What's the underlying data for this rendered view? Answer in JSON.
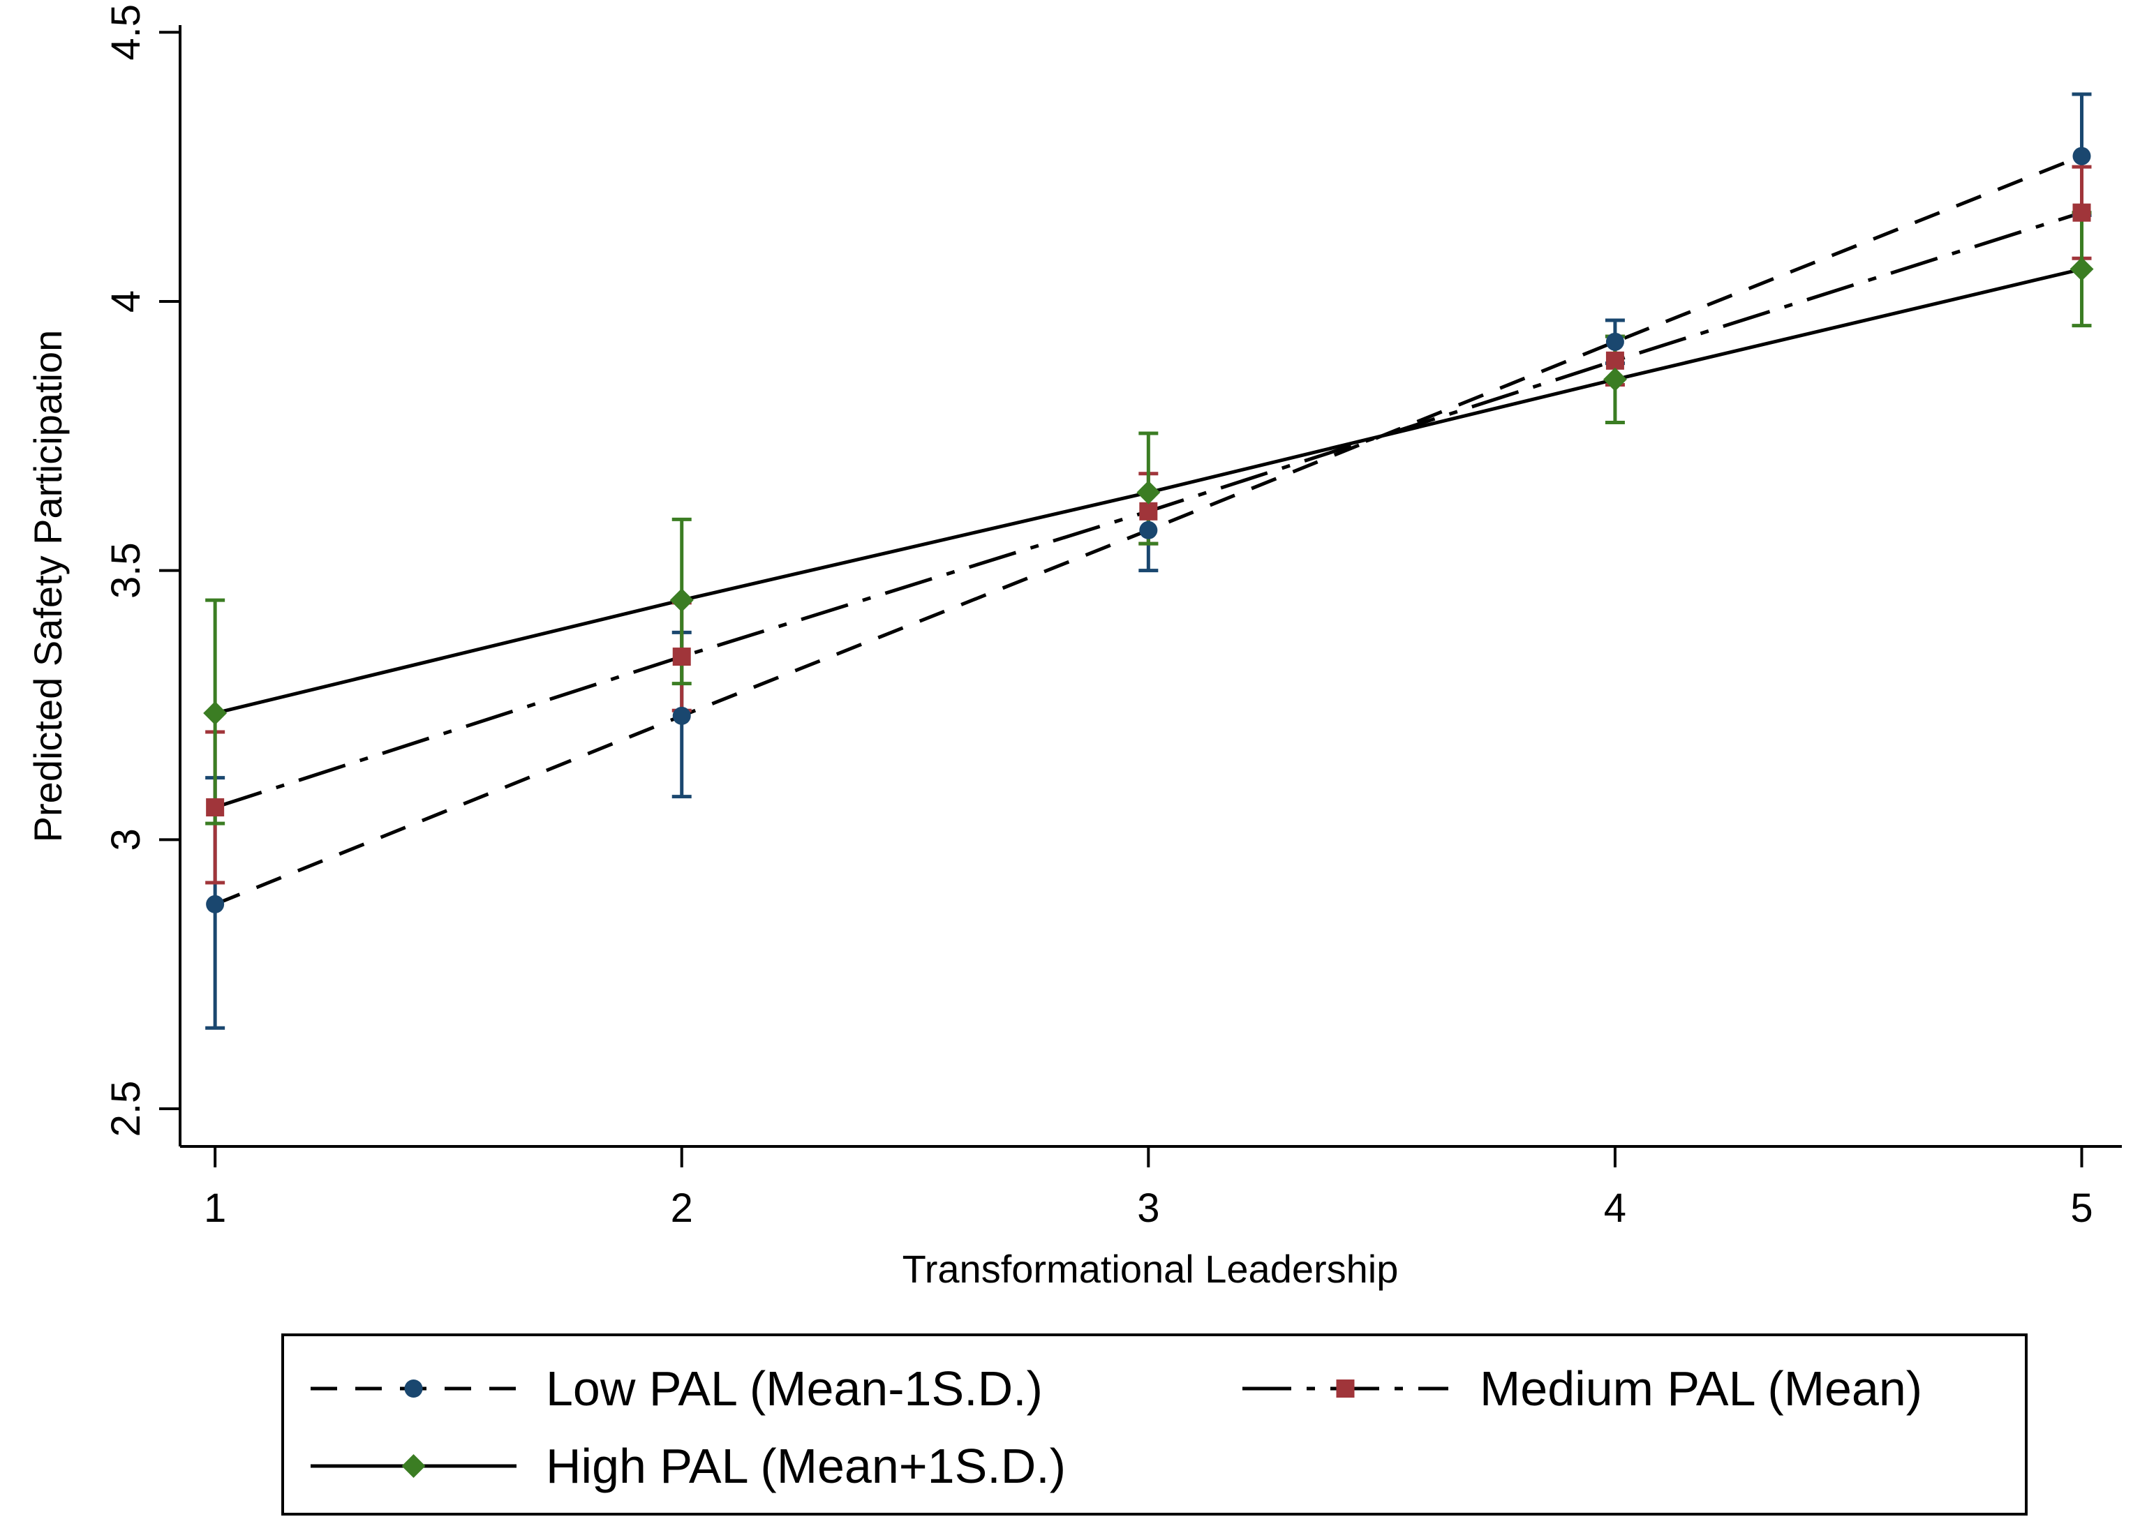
{
  "chart_data": {
    "type": "line",
    "title": "",
    "xlabel": "Transformational Leadership",
    "ylabel": "Predicted Safety Participation",
    "x": [
      1,
      2,
      3,
      4,
      5
    ],
    "xlim": [
      0.925,
      5.08
    ],
    "ylim": [
      2.43,
      4.56
    ],
    "xticks": [
      "1",
      "2",
      "3",
      "4",
      "5"
    ],
    "yticks": [
      "2.5",
      "3",
      "3.5",
      "4",
      "4.5"
    ],
    "grid": false,
    "legend_position": "bottom",
    "series": [
      {
        "name": "Low PAL (Mean-1S.D.)",
        "color": "#1a476f",
        "line_style": "dash",
        "marker": "circle",
        "values": [
          2.88,
          3.23,
          3.575,
          3.925,
          4.27
        ],
        "ci_low": [
          2.65,
          3.08,
          3.5,
          3.885,
          4.16
        ],
        "ci_high": [
          3.115,
          3.385,
          3.645,
          3.965,
          4.385
        ]
      },
      {
        "name": "Medium PAL (Mean)",
        "color": "#a0353a",
        "line_style": "dashdot",
        "marker": "square",
        "values": [
          3.06,
          3.34,
          3.61,
          3.89,
          4.165
        ],
        "ci_low": [
          2.92,
          3.24,
          3.55,
          3.845,
          4.08
        ],
        "ci_high": [
          3.2,
          3.44,
          3.68,
          3.935,
          4.25
        ]
      },
      {
        "name": "High PAL (Mean+1S.D.)",
        "color": "#3b7d23",
        "line_style": "solid",
        "marker": "diamond",
        "values": [
          3.235,
          3.445,
          3.645,
          3.855,
          4.06
        ],
        "ci_low": [
          3.03,
          3.29,
          3.55,
          3.775,
          3.955
        ],
        "ci_high": [
          3.445,
          3.595,
          3.755,
          3.935,
          4.165
        ]
      }
    ]
  }
}
